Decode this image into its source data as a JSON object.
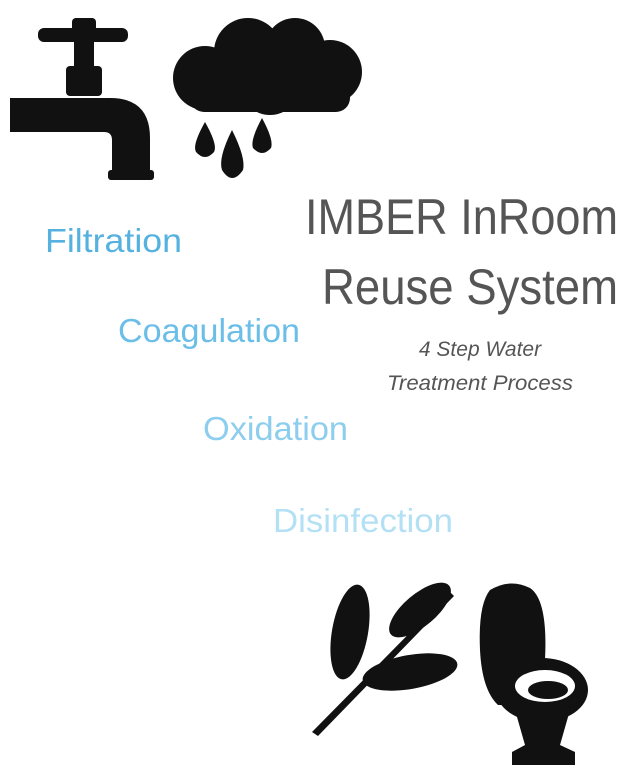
{
  "title": {
    "lines": [
      "IMBER InRoom",
      "Reuse System"
    ]
  },
  "subtitle": {
    "lines": [
      "4 Step Water",
      "Treatment Process"
    ]
  },
  "steps": [
    "Filtration",
    "Coagulation",
    "Oxidation",
    "Disinfection"
  ]
}
